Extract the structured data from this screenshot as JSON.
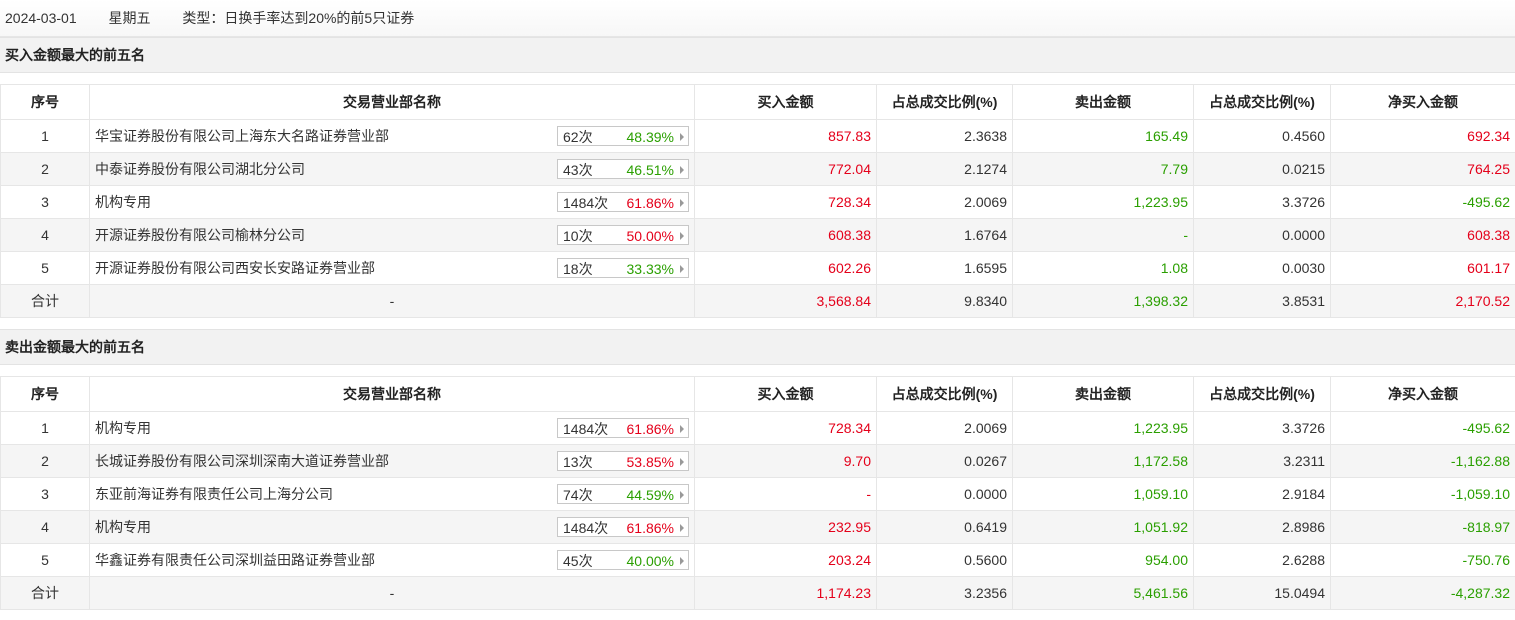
{
  "header": {
    "date": "2024-03-01",
    "weekday": "星期五",
    "type_label": "类型：日换手率达到20%的前5只证券"
  },
  "colors": {
    "up": "#e4001a",
    "down": "#2a9f00"
  },
  "columns": [
    "序号",
    "交易营业部名称",
    "买入金额",
    "占总成交比例(%)",
    "卖出金额",
    "占总成交比例(%)",
    "净买入金额"
  ],
  "buy_section": {
    "title": "买入金额最大的前五名",
    "rows": [
      {
        "no": "1",
        "name": "华宝证券股份有限公司上海东大名路证券营业部",
        "count": "62次",
        "pct": "48.39%",
        "pct_color": "green",
        "buy": "857.83",
        "buy_ratio": "2.3638",
        "sell": "165.49",
        "sell_ratio": "0.4560",
        "net": "692.34",
        "net_color": "red"
      },
      {
        "no": "2",
        "name": "中泰证券股份有限公司湖北分公司",
        "count": "43次",
        "pct": "46.51%",
        "pct_color": "green",
        "buy": "772.04",
        "buy_ratio": "2.1274",
        "sell": "7.79",
        "sell_ratio": "0.0215",
        "net": "764.25",
        "net_color": "red"
      },
      {
        "no": "3",
        "name": "机构专用",
        "count": "1484次",
        "pct": "61.86%",
        "pct_color": "red",
        "buy": "728.34",
        "buy_ratio": "2.0069",
        "sell": "1,223.95",
        "sell_ratio": "3.3726",
        "net": "-495.62",
        "net_color": "green"
      },
      {
        "no": "4",
        "name": "开源证券股份有限公司榆林分公司",
        "count": "10次",
        "pct": "50.00%",
        "pct_color": "red",
        "buy": "608.38",
        "buy_ratio": "1.6764",
        "sell": "-",
        "sell_ratio": "0.0000",
        "net": "608.38",
        "net_color": "red"
      },
      {
        "no": "5",
        "name": "开源证券股份有限公司西安长安路证券营业部",
        "count": "18次",
        "pct": "33.33%",
        "pct_color": "green",
        "buy": "602.26",
        "buy_ratio": "1.6595",
        "sell": "1.08",
        "sell_ratio": "0.0030",
        "net": "601.17",
        "net_color": "red"
      }
    ],
    "total": {
      "label": "合计",
      "name": "-",
      "buy": "3,568.84",
      "buy_ratio": "9.8340",
      "sell": "1,398.32",
      "sell_ratio": "3.8531",
      "net": "2,170.52",
      "net_color": "red"
    }
  },
  "sell_section": {
    "title": "卖出金额最大的前五名",
    "rows": [
      {
        "no": "1",
        "name": "机构专用",
        "count": "1484次",
        "pct": "61.86%",
        "pct_color": "red",
        "buy": "728.34",
        "buy_ratio": "2.0069",
        "sell": "1,223.95",
        "sell_ratio": "3.3726",
        "net": "-495.62",
        "net_color": "green"
      },
      {
        "no": "2",
        "name": "长城证券股份有限公司深圳深南大道证券营业部",
        "count": "13次",
        "pct": "53.85%",
        "pct_color": "red",
        "buy": "9.70",
        "buy_ratio": "0.0267",
        "sell": "1,172.58",
        "sell_ratio": "3.2311",
        "net": "-1,162.88",
        "net_color": "green"
      },
      {
        "no": "3",
        "name": "东亚前海证券有限责任公司上海分公司",
        "count": "74次",
        "pct": "44.59%",
        "pct_color": "green",
        "buy": "-",
        "buy_ratio": "0.0000",
        "sell": "1,059.10",
        "sell_ratio": "2.9184",
        "net": "-1,059.10",
        "net_color": "green"
      },
      {
        "no": "4",
        "name": "机构专用",
        "count": "1484次",
        "pct": "61.86%",
        "pct_color": "red",
        "buy": "232.95",
        "buy_ratio": "0.6419",
        "sell": "1,051.92",
        "sell_ratio": "2.8986",
        "net": "-818.97",
        "net_color": "green"
      },
      {
        "no": "5",
        "name": "华鑫证券有限责任公司深圳益田路证券营业部",
        "count": "45次",
        "pct": "40.00%",
        "pct_color": "green",
        "buy": "203.24",
        "buy_ratio": "0.5600",
        "sell": "954.00",
        "sell_ratio": "2.6288",
        "net": "-750.76",
        "net_color": "green"
      }
    ],
    "total": {
      "label": "合计",
      "name": "-",
      "buy": "1,174.23",
      "buy_ratio": "3.2356",
      "sell": "5,461.56",
      "sell_ratio": "15.0494",
      "net": "-4,287.32",
      "net_color": "green"
    }
  }
}
